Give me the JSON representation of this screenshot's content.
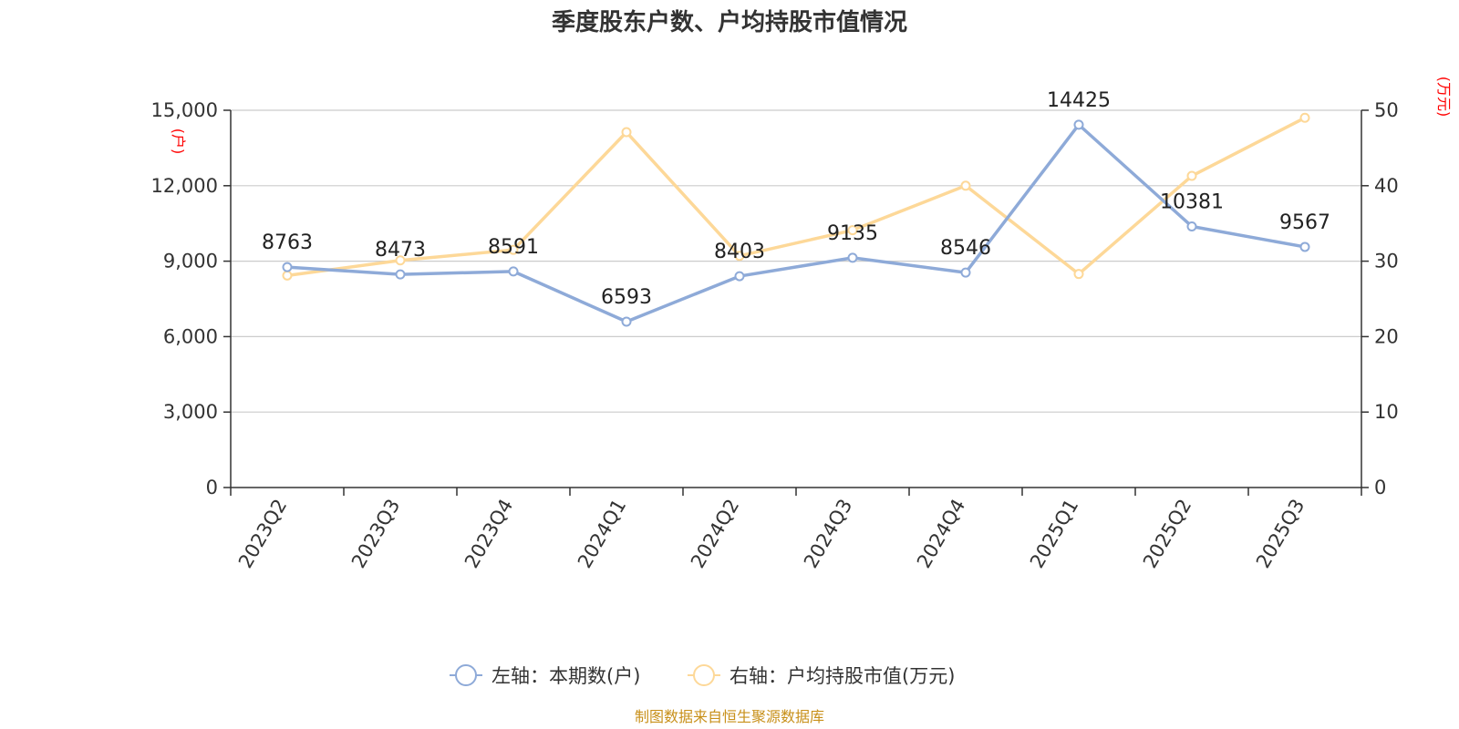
{
  "chart_data": {
    "type": "line",
    "title": "季度股东户数、户均持股市值情况",
    "categories": [
      "2023Q2",
      "2023Q3",
      "2023Q4",
      "2024Q1",
      "2024Q2",
      "2024Q3",
      "2024Q4",
      "2025Q1",
      "2025Q2",
      "2025Q3"
    ],
    "series": [
      {
        "name": "左轴：本期数(户)",
        "axis": "left",
        "color": "#8eaad8",
        "values": [
          8763,
          8473,
          8591,
          6593,
          8403,
          9135,
          8546,
          14425,
          10381,
          9567
        ],
        "labels": [
          "8763",
          "8473",
          "8591",
          "6593",
          "8403",
          "9135",
          "8546",
          "14425",
          "10381",
          "9567"
        ]
      },
      {
        "name": "右轴：户均持股市值(万元)",
        "axis": "right",
        "color": "#fdd898",
        "values": [
          28.1,
          30.1,
          31.5,
          47.1,
          30.7,
          34.1,
          40.0,
          28.3,
          41.3,
          49.0
        ]
      }
    ],
    "y_left": {
      "unit": "(户)",
      "ylim": [
        0,
        15000
      ],
      "ticks": [
        "0",
        "3,000",
        "6,000",
        "9,000",
        "12,000",
        "15,000"
      ]
    },
    "y_right": {
      "unit": "(万元)",
      "ylim": [
        0,
        50
      ],
      "ticks": [
        "0",
        "10",
        "20",
        "30",
        "40",
        "50"
      ]
    },
    "grid": true,
    "legend_position": "bottom-center",
    "source": "制图数据来自恒生聚源数据库"
  }
}
